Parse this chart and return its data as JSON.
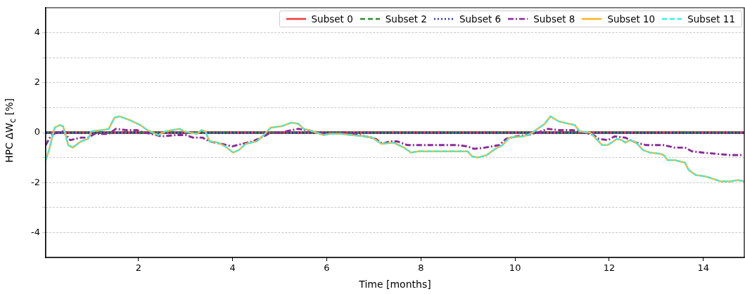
{
  "chart_data": {
    "type": "line",
    "xlabel": "Time [months]",
    "ylabel": "HPC ΔW$_{c}$ [%]",
    "xlim": [
      0.03,
      14.87
    ],
    "xticks": [
      2,
      4,
      6,
      8,
      10,
      12,
      14
    ],
    "ylim": [
      -5,
      5
    ],
    "yticks": [
      -4,
      {
        "value": -3,
        "label": null
      },
      -2,
      {
        "value": -1,
        "label": null
      },
      0,
      {
        "value": 1,
        "label": null
      },
      2,
      {
        "value": 3,
        "label": null
      },
      4
    ],
    "grid": "y",
    "legend": "top right",
    "marker": "none",
    "series": [
      {
        "name": "Subset 0",
        "color": "#f03c3c",
        "line_style": "solid",
        "x": [
          0.03,
          14.87
        ],
        "values": [
          0,
          0
        ]
      },
      {
        "name": "Subset 2",
        "color": "#2e8b2e",
        "line_style": "dashed",
        "x": [
          0.03,
          14.87
        ],
        "values": [
          0,
          0
        ]
      },
      {
        "name": "Subset 6",
        "color": "#2b2bd6",
        "line_style": "dotted",
        "x": [
          0.03,
          14.87
        ],
        "values": [
          0,
          0
        ]
      },
      {
        "name": "Subset 8",
        "color": "#8b2a9b",
        "line_style": "dashdot",
        "x": [
          0.03,
          0.13,
          0.25,
          0.4,
          0.55,
          0.78,
          0.93,
          1.07,
          1.37,
          1.52,
          1.75,
          1.97,
          2.12,
          2.27,
          2.49,
          2.79,
          3.01,
          3.16,
          3.36,
          3.51,
          3.76,
          3.99,
          4.21,
          4.43,
          4.66,
          4.81,
          5.03,
          5.25,
          5.4,
          5.55,
          5.7,
          5.93,
          6.37,
          6.6,
          6.82,
          7.04,
          7.19,
          7.34,
          7.49,
          7.72,
          8.01,
          8.76,
          8.99,
          9.13,
          9.36,
          9.66,
          9.81,
          10.03,
          10.25,
          10.48,
          10.7,
          10.93,
          11.22,
          11.37,
          11.67,
          11.78,
          11.97,
          12.12,
          12.34,
          12.57,
          12.79,
          13.16,
          13.39,
          13.61,
          13.76,
          13.99,
          14.28,
          14.58,
          14.81
        ],
        "values": [
          -0.5,
          -0.15,
          0.0,
          0.05,
          -0.3,
          -0.2,
          -0.2,
          -0.05,
          -0.05,
          0.15,
          0.1,
          0.1,
          0.0,
          -0.05,
          -0.15,
          -0.1,
          -0.1,
          -0.2,
          -0.2,
          -0.35,
          -0.45,
          -0.55,
          -0.45,
          -0.35,
          -0.15,
          0.0,
          0.0,
          0.1,
          0.15,
          0.1,
          0.05,
          -0.05,
          0.0,
          -0.05,
          -0.15,
          -0.25,
          -0.45,
          -0.35,
          -0.35,
          -0.5,
          -0.5,
          -0.5,
          -0.55,
          -0.65,
          -0.6,
          -0.5,
          -0.25,
          -0.15,
          -0.1,
          0.0,
          0.15,
          0.1,
          0.1,
          0.05,
          -0.1,
          -0.25,
          -0.3,
          -0.15,
          -0.2,
          -0.4,
          -0.5,
          -0.5,
          -0.6,
          -0.6,
          -0.75,
          -0.8,
          -0.85,
          -0.9,
          -0.9
        ]
      },
      {
        "name": "Subset 10",
        "color": "#f8b530",
        "line_style": "solid",
        "x": [
          0.03,
          0.1,
          0.22,
          0.33,
          0.4,
          0.51,
          0.6,
          0.78,
          0.93,
          1.0,
          1.22,
          1.37,
          1.49,
          1.6,
          1.82,
          2.04,
          2.19,
          2.42,
          2.57,
          2.87,
          2.97,
          3.09,
          3.24,
          3.34,
          3.42,
          3.51,
          3.69,
          3.84,
          4.01,
          4.13,
          4.28,
          4.51,
          4.66,
          4.81,
          5.03,
          5.25,
          5.4,
          5.51,
          5.63,
          5.93,
          6.07,
          6.3,
          6.52,
          6.82,
          6.97,
          7.16,
          7.42,
          7.64,
          7.79,
          7.94,
          8.16,
          8.76,
          8.99,
          9.09,
          9.21,
          9.4,
          9.58,
          9.73,
          9.88,
          10.18,
          10.33,
          10.48,
          10.63,
          10.75,
          10.93,
          11.15,
          11.27,
          11.37,
          11.6,
          11.75,
          11.85,
          11.97,
          12.09,
          12.16,
          12.27,
          12.34,
          12.45,
          12.57,
          12.72,
          12.87,
          13.09,
          13.16,
          13.24,
          13.39,
          13.61,
          13.69,
          13.84,
          14.03,
          14.13,
          14.36,
          14.58,
          14.73,
          14.87
        ],
        "values": [
          -1.1,
          -0.7,
          0.2,
          0.3,
          0.25,
          -0.5,
          -0.6,
          -0.35,
          -0.25,
          0.05,
          0.1,
          0.15,
          0.6,
          0.65,
          0.5,
          0.3,
          0.1,
          -0.1,
          0.05,
          0.15,
          0.05,
          0.0,
          -0.05,
          0.1,
          0.05,
          -0.35,
          -0.4,
          -0.55,
          -0.8,
          -0.7,
          -0.45,
          -0.35,
          -0.1,
          0.2,
          0.25,
          0.4,
          0.35,
          0.15,
          0.1,
          -0.1,
          -0.05,
          -0.05,
          -0.1,
          -0.15,
          -0.2,
          -0.45,
          -0.4,
          -0.6,
          -0.8,
          -0.75,
          -0.75,
          -0.75,
          -0.75,
          -0.95,
          -1.0,
          -0.9,
          -0.65,
          -0.5,
          -0.2,
          -0.15,
          -0.05,
          0.15,
          0.35,
          0.65,
          0.45,
          0.35,
          0.3,
          0.05,
          0.0,
          -0.3,
          -0.5,
          -0.5,
          -0.35,
          -0.25,
          -0.3,
          -0.4,
          -0.3,
          -0.4,
          -0.7,
          -0.8,
          -0.85,
          -0.9,
          -1.1,
          -1.1,
          -1.2,
          -1.5,
          -1.7,
          -1.75,
          -1.8,
          -1.95,
          -1.95,
          -1.9,
          -1.95
        ]
      },
      {
        "name": "Subset 11",
        "color": "#33f0e6",
        "line_style": "dashed",
        "x": [
          0.03,
          0.1,
          0.22,
          0.33,
          0.4,
          0.51,
          0.6,
          0.78,
          0.93,
          1.0,
          1.22,
          1.37,
          1.49,
          1.6,
          1.82,
          2.04,
          2.19,
          2.42,
          2.57,
          2.87,
          2.97,
          3.09,
          3.24,
          3.34,
          3.42,
          3.51,
          3.69,
          3.84,
          4.01,
          4.13,
          4.28,
          4.51,
          4.66,
          4.81,
          5.03,
          5.25,
          5.4,
          5.51,
          5.63,
          5.93,
          6.07,
          6.3,
          6.52,
          6.82,
          6.97,
          7.16,
          7.42,
          7.64,
          7.79,
          7.94,
          8.16,
          8.76,
          8.99,
          9.09,
          9.21,
          9.4,
          9.58,
          9.73,
          9.88,
          10.18,
          10.33,
          10.48,
          10.63,
          10.75,
          10.93,
          11.15,
          11.27,
          11.37,
          11.6,
          11.75,
          11.85,
          11.97,
          12.09,
          12.16,
          12.27,
          12.34,
          12.45,
          12.57,
          12.72,
          12.87,
          13.09,
          13.16,
          13.24,
          13.39,
          13.61,
          13.69,
          13.84,
          14.03,
          14.13,
          14.36,
          14.58,
          14.73,
          14.87
        ],
        "values": [
          -1.1,
          -0.7,
          0.2,
          0.3,
          0.25,
          -0.5,
          -0.6,
          -0.35,
          -0.25,
          0.05,
          0.1,
          0.15,
          0.6,
          0.65,
          0.5,
          0.3,
          0.1,
          -0.1,
          0.05,
          0.15,
          0.05,
          0.0,
          -0.05,
          0.1,
          0.05,
          -0.35,
          -0.4,
          -0.55,
          -0.8,
          -0.7,
          -0.45,
          -0.35,
          -0.1,
          0.2,
          0.25,
          0.4,
          0.35,
          0.15,
          0.1,
          -0.1,
          -0.05,
          -0.05,
          -0.1,
          -0.15,
          -0.2,
          -0.45,
          -0.4,
          -0.6,
          -0.8,
          -0.75,
          -0.75,
          -0.75,
          -0.75,
          -0.95,
          -1.0,
          -0.9,
          -0.65,
          -0.5,
          -0.2,
          -0.15,
          -0.05,
          0.15,
          0.35,
          0.65,
          0.45,
          0.35,
          0.3,
          0.05,
          0.0,
          -0.3,
          -0.5,
          -0.5,
          -0.35,
          -0.25,
          -0.3,
          -0.4,
          -0.3,
          -0.4,
          -0.7,
          -0.8,
          -0.85,
          -0.9,
          -1.1,
          -1.1,
          -1.2,
          -1.5,
          -1.7,
          -1.75,
          -1.8,
          -1.95,
          -1.95,
          -1.9,
          -1.95
        ]
      }
    ]
  }
}
